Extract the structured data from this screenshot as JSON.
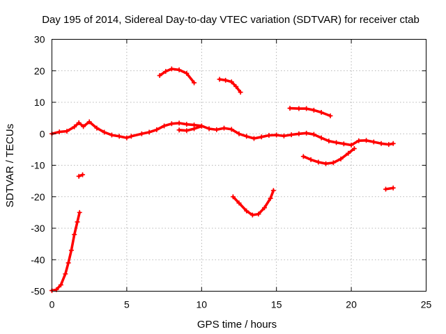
{
  "chart_data": {
    "type": "line",
    "title": "Day 195 of 2014, Sidereal Day-to-day VTEC variation (SDTVAR) for receiver ctab",
    "xlabel": "GPS time / hours",
    "ylabel": "SDTVAR / TECUs",
    "xlim": [
      0,
      25
    ],
    "ylim": [
      -50,
      30
    ],
    "xticks": [
      "0",
      "5",
      "10",
      "15",
      "20",
      "25"
    ],
    "yticks": [
      "30",
      "20",
      "10",
      "0",
      "-10",
      "-20",
      "-30",
      "-40",
      "-50"
    ],
    "grid": true,
    "series_color": "#ff0000",
    "series": [
      {
        "name": "main-trace",
        "points": [
          [
            0,
            0
          ],
          [
            0.5,
            0.6
          ],
          [
            1,
            0.8
          ],
          [
            1.5,
            2.2
          ],
          [
            1.8,
            3.5
          ],
          [
            2.1,
            2.3
          ],
          [
            2.5,
            3.8
          ],
          [
            3,
            1.8
          ],
          [
            3.5,
            0.5
          ],
          [
            4,
            -0.4
          ],
          [
            4.5,
            -0.8
          ],
          [
            5,
            -1.3
          ],
          [
            5.3,
            -0.8
          ],
          [
            6,
            0
          ],
          [
            6.5,
            0.5
          ],
          [
            7,
            1.3
          ],
          [
            7.5,
            2.5
          ],
          [
            8,
            3.2
          ],
          [
            8.5,
            3.4
          ],
          [
            9,
            3
          ],
          [
            9.5,
            2.8
          ],
          [
            10,
            2.5
          ],
          [
            10.5,
            1.6
          ],
          [
            11,
            1.3
          ],
          [
            11.5,
            1.8
          ],
          [
            12,
            1.4
          ],
          [
            12.5,
            0
          ],
          [
            13,
            -0.8
          ],
          [
            13.5,
            -1.5
          ],
          [
            14,
            -1
          ],
          [
            14.5,
            -0.5
          ],
          [
            15,
            -0.4
          ],
          [
            15.5,
            -0.7
          ],
          [
            16,
            -0.3
          ],
          [
            16.5,
            0
          ],
          [
            17,
            0.2
          ],
          [
            17.5,
            -0.2
          ],
          [
            18,
            -1.3
          ],
          [
            18.5,
            -2.3
          ],
          [
            19,
            -2.8
          ],
          [
            19.5,
            -3.2
          ],
          [
            20,
            -3.6
          ],
          [
            20.5,
            -2.2
          ],
          [
            21,
            -2.1
          ],
          [
            21.5,
            -2.6
          ],
          [
            22,
            -3.1
          ],
          [
            22.5,
            -3.4
          ],
          [
            22.8,
            -3.1
          ]
        ]
      },
      {
        "name": "rising-branch",
        "points": [
          [
            0,
            -49.8
          ],
          [
            0.3,
            -49.5
          ],
          [
            0.6,
            -48
          ],
          [
            0.9,
            -44.5
          ],
          [
            1.1,
            -41
          ],
          [
            1.3,
            -37
          ],
          [
            1.5,
            -32
          ],
          [
            1.7,
            -28
          ],
          [
            1.85,
            -25
          ]
        ]
      },
      {
        "name": "dip-at-2h",
        "points": [
          [
            1.8,
            -13.5
          ],
          [
            2.05,
            -13
          ]
        ]
      },
      {
        "name": "arc-8h",
        "points": [
          [
            7.2,
            18.5
          ],
          [
            7.6,
            19.8
          ],
          [
            8,
            20.6
          ],
          [
            8.5,
            20.3
          ],
          [
            9,
            19.2
          ],
          [
            9.5,
            16.2
          ]
        ]
      },
      {
        "name": "arc-11h",
        "points": [
          [
            11.2,
            17.3
          ],
          [
            11.6,
            17
          ],
          [
            12,
            16.5
          ],
          [
            12.3,
            15
          ],
          [
            12.6,
            13.2
          ]
        ]
      },
      {
        "name": "bowl-13h",
        "points": [
          [
            12.1,
            -20
          ],
          [
            12.5,
            -22
          ],
          [
            13,
            -24.5
          ],
          [
            13.4,
            -25.8
          ],
          [
            13.8,
            -25.5
          ],
          [
            14.2,
            -23.5
          ],
          [
            14.6,
            -20.5
          ],
          [
            14.8,
            -18
          ]
        ]
      },
      {
        "name": "arc-17h",
        "points": [
          [
            15.9,
            8.1
          ],
          [
            16.5,
            8
          ],
          [
            17,
            8
          ],
          [
            17.5,
            7.5
          ],
          [
            18,
            6.8
          ],
          [
            18.6,
            5.7
          ]
        ]
      },
      {
        "name": "lower-arc-17h",
        "points": [
          [
            16.8,
            -7.2
          ],
          [
            17.3,
            -8.2
          ],
          [
            17.8,
            -9
          ],
          [
            18.3,
            -9.5
          ],
          [
            18.8,
            -9.2
          ],
          [
            19.3,
            -8
          ],
          [
            19.8,
            -6.2
          ],
          [
            20.2,
            -4.7
          ]
        ]
      },
      {
        "name": "bump-9h",
        "points": [
          [
            8.5,
            1.2
          ],
          [
            9,
            1
          ],
          [
            9.5,
            1.6
          ],
          [
            10,
            2.4
          ]
        ]
      },
      {
        "name": "segment-22h",
        "points": [
          [
            22.3,
            -17.6
          ],
          [
            22.8,
            -17.2
          ]
        ]
      }
    ]
  }
}
